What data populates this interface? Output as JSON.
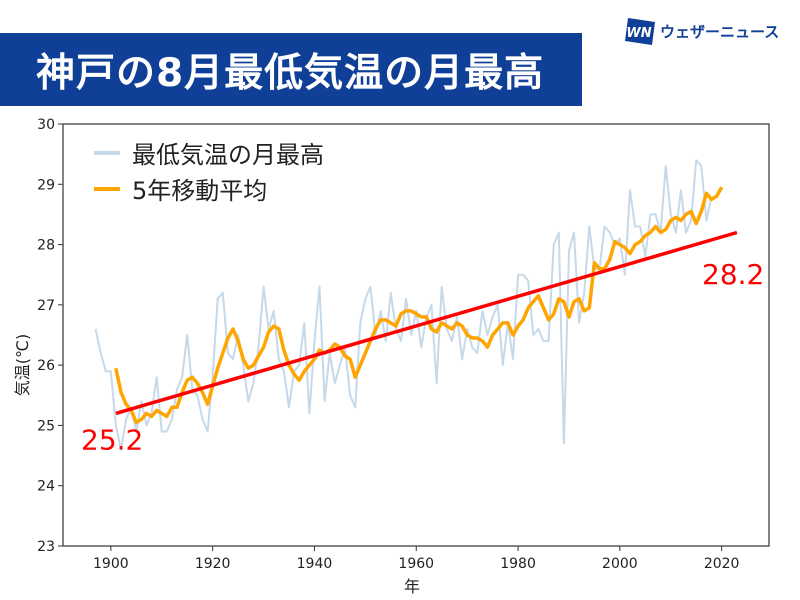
{
  "header": {
    "title": "神戸の8月最低気温の月最高",
    "brand_mark": "WN",
    "brand_name": "ウェザーニュース",
    "brand_color": "#0f3f96"
  },
  "chart_data": {
    "type": "line",
    "title": "神戸の8月最低気温の月最高",
    "xlabel": "年",
    "ylabel": "気温(℃)",
    "xlim": [
      1890.6,
      2029.3
    ],
    "ylim": [
      23,
      30
    ],
    "xticks": [
      1900,
      1920,
      1940,
      1960,
      1980,
      2000,
      2020
    ],
    "yticks": [
      23,
      24,
      25,
      26,
      27,
      28,
      29,
      30
    ],
    "grid": false,
    "legend_position": "top-left",
    "series": [
      {
        "name": "最低気温の月最高",
        "color": "#c5d9ea",
        "x_start": 1897,
        "values": [
          26.6,
          26.2,
          25.9,
          25.9,
          25.0,
          24.6,
          25.1,
          25.3,
          24.9,
          25.4,
          25.0,
          25.2,
          25.8,
          24.9,
          24.9,
          25.1,
          25.6,
          25.8,
          26.5,
          25.6,
          25.5,
          25.1,
          24.9,
          25.8,
          27.1,
          27.2,
          26.2,
          26.1,
          26.5,
          26.0,
          25.4,
          25.7,
          26.3,
          27.3,
          26.6,
          26.9,
          26.1,
          25.9,
          25.3,
          25.9,
          26.0,
          26.7,
          25.2,
          26.4,
          27.3,
          25.4,
          26.2,
          25.7,
          26.0,
          26.3,
          25.5,
          25.3,
          26.7,
          27.1,
          27.3,
          26.5,
          26.9,
          26.4,
          27.2,
          26.6,
          26.4,
          27.1,
          26.5,
          26.9,
          26.3,
          26.8,
          27.0,
          25.7,
          27.3,
          26.6,
          26.4,
          26.8,
          26.1,
          26.6,
          26.3,
          26.2,
          26.9,
          26.5,
          26.8,
          27.0,
          26.0,
          26.7,
          26.1,
          27.5,
          27.5,
          27.4,
          26.5,
          26.6,
          26.4,
          26.4,
          28.0,
          28.2,
          24.7,
          27.9,
          28.2,
          26.7,
          27.2,
          28.3,
          27.6,
          27.6,
          28.3,
          28.2,
          28.0,
          28.1,
          27.5,
          28.9,
          28.3,
          28.3,
          27.8,
          28.5,
          28.5,
          28.2,
          29.3,
          28.5,
          28.2,
          28.9,
          28.2,
          28.4,
          29.4,
          29.3,
          28.4,
          28.8
        ]
      },
      {
        "name": "5年移動平均",
        "color": "#ffa500",
        "x_start": 1901,
        "values": [
          25.95,
          25.55,
          25.35,
          25.25,
          25.05,
          25.1,
          25.2,
          25.15,
          25.25,
          25.2,
          25.15,
          25.3,
          25.3,
          25.55,
          25.75,
          25.8,
          25.7,
          25.55,
          25.35,
          25.65,
          25.95,
          26.2,
          26.45,
          26.6,
          26.4,
          26.1,
          25.95,
          26.0,
          26.15,
          26.3,
          26.55,
          26.65,
          26.6,
          26.25,
          26.0,
          25.85,
          25.75,
          25.9,
          26.0,
          26.1,
          26.25,
          26.2,
          26.25,
          26.35,
          26.3,
          26.15,
          26.1,
          25.8,
          26.0,
          26.2,
          26.4,
          26.6,
          26.75,
          26.75,
          26.7,
          26.65,
          26.85,
          26.9,
          26.9,
          26.85,
          26.8,
          26.8,
          26.6,
          26.55,
          26.7,
          26.65,
          26.6,
          26.7,
          26.65,
          26.5,
          26.45,
          26.45,
          26.4,
          26.3,
          26.5,
          26.6,
          26.7,
          26.7,
          26.5,
          26.65,
          26.75,
          26.95,
          27.05,
          27.15,
          26.95,
          26.75,
          26.85,
          27.1,
          27.05,
          26.8,
          27.05,
          27.1,
          26.9,
          26.95,
          27.7,
          27.6,
          27.6,
          27.75,
          28.05,
          28.0,
          27.95,
          27.85,
          28.0,
          28.05,
          28.15,
          28.2,
          28.3,
          28.2,
          28.25,
          28.4,
          28.45,
          28.4,
          28.5,
          28.55,
          28.35,
          28.55,
          28.85,
          28.75,
          28.8,
          28.95
        ]
      },
      {
        "name": "trend",
        "color": "#ff0000",
        "x": [
          1901,
          2023
        ],
        "values": [
          25.2,
          28.2
        ]
      }
    ],
    "annotations": [
      {
        "text": "25.2",
        "x": 1901,
        "y": 25.2,
        "color": "#ff0000"
      },
      {
        "text": "28.2",
        "x": 2023,
        "y": 28.2,
        "color": "#ff0000"
      }
    ]
  }
}
